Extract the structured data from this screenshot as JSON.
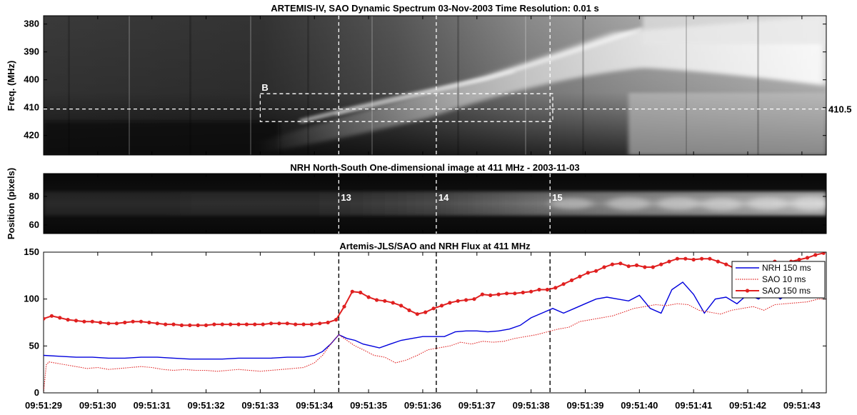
{
  "panels": {
    "spectrum": {
      "title": "ARTEMIS-IV, SAO Dynamic Spectrum 03-Nov-2003 Time Resolution: 0.01 s",
      "ylabel": "Freq. (MHz)",
      "yticks": [
        380,
        390,
        400,
        410,
        420
      ],
      "ylim": [
        377,
        427
      ],
      "box_label": "B",
      "line_label": "410.5",
      "line_freq": 410.5,
      "box": {
        "t0": 33.0,
        "t1": 38.4,
        "f0": 405,
        "f1": 415
      }
    },
    "nrh": {
      "title": "NRH North-South One-dimensional image at 411 MHz  -  2003-11-03",
      "ylabel": "Position (pixels)",
      "yticks": [
        60,
        80
      ],
      "ylim": [
        54,
        96
      ],
      "markers": [
        "13",
        "14",
        "15"
      ]
    },
    "flux": {
      "title": "Artemis-JLS/SAO and NRH Flux at 411 MHz",
      "yticks": [
        0,
        50,
        100,
        150
      ],
      "ylim": [
        0,
        150
      ]
    }
  },
  "time_axis": {
    "xlim": [
      29.0,
      43.45
    ],
    "ticks": [
      "09:51:29",
      "09:51:30",
      "09:51:31",
      "09:51:32",
      "09:51:33",
      "09:51:34",
      "09:51:35",
      "09:51:36",
      "09:51:37",
      "09:51:38",
      "09:51:39",
      "09:51:40",
      "09:51:41",
      "09:51:42",
      "09:51:43"
    ],
    "tick_values": [
      29,
      30,
      31,
      32,
      33,
      34,
      35,
      36,
      37,
      38,
      39,
      40,
      41,
      42,
      43
    ]
  },
  "markers_time": [
    34.45,
    36.25,
    38.35
  ],
  "colors": {
    "nrh": "#0000dd",
    "sao": "#e02020"
  },
  "chart_data": {
    "type": "line",
    "title": "Artemis-JLS/SAO and NRH Flux at 411 MHz",
    "xlabel": "",
    "ylabel": "",
    "ylim": [
      0,
      150
    ],
    "legend_position": "top-right",
    "series": [
      {
        "name": "NRH 150 ms",
        "style": "solid",
        "x": [
          29.0,
          29.3,
          29.6,
          29.9,
          30.2,
          30.5,
          30.8,
          31.1,
          31.4,
          31.7,
          32.0,
          32.3,
          32.6,
          32.9,
          33.2,
          33.5,
          33.8,
          34.0,
          34.15,
          34.3,
          34.45,
          34.6,
          34.75,
          34.9,
          35.05,
          35.2,
          35.4,
          35.6,
          35.8,
          36.0,
          36.2,
          36.4,
          36.6,
          36.8,
          37.0,
          37.2,
          37.4,
          37.6,
          37.8,
          38.0,
          38.2,
          38.4,
          38.6,
          38.8,
          39.0,
          39.2,
          39.4,
          39.6,
          39.8,
          40.0,
          40.2,
          40.4,
          40.6,
          40.8,
          41.0,
          41.2,
          41.4,
          41.6,
          41.8,
          42.0,
          42.2,
          42.4,
          42.6,
          42.8,
          43.0,
          43.2,
          43.35
        ],
        "values": [
          40,
          39,
          38,
          38,
          37,
          37,
          38,
          38,
          37,
          36,
          36,
          36,
          37,
          37,
          37,
          38,
          38,
          40,
          44,
          52,
          62,
          58,
          56,
          52,
          50,
          48,
          52,
          56,
          58,
          60,
          60,
          60,
          65,
          66,
          66,
          65,
          66,
          68,
          72,
          80,
          85,
          90,
          85,
          90,
          95,
          100,
          102,
          100,
          98,
          104,
          90,
          85,
          110,
          118,
          105,
          85,
          100,
          102,
          95,
          105,
          100,
          110,
          100,
          108,
          105,
          130,
          122
        ]
      },
      {
        "name": "SAO 10 ms",
        "style": "dotted",
        "x": [
          29.0,
          29.05,
          29.1,
          29.2,
          29.4,
          29.6,
          29.8,
          30.0,
          30.2,
          30.4,
          30.6,
          30.8,
          31.0,
          31.2,
          31.4,
          31.6,
          31.8,
          32.0,
          32.2,
          32.4,
          32.6,
          32.8,
          33.0,
          33.2,
          33.4,
          33.6,
          33.8,
          34.0,
          34.15,
          34.3,
          34.45,
          34.6,
          34.75,
          34.9,
          35.1,
          35.3,
          35.5,
          35.7,
          35.9,
          36.1,
          36.3,
          36.5,
          36.7,
          36.9,
          37.1,
          37.3,
          37.5,
          37.7,
          37.9,
          38.1,
          38.3,
          38.5,
          38.7,
          38.9,
          39.1,
          39.3,
          39.5,
          39.7,
          39.9,
          40.1,
          40.3,
          40.5,
          40.7,
          40.9,
          41.1,
          41.3,
          41.5,
          41.7,
          41.9,
          42.1,
          42.3,
          42.5,
          42.7,
          42.9,
          43.1,
          43.3,
          43.45
        ],
        "values": [
          0,
          30,
          33,
          32,
          30,
          28,
          26,
          27,
          25,
          26,
          27,
          28,
          27,
          25,
          24,
          25,
          24,
          24,
          23,
          24,
          25,
          24,
          23,
          24,
          25,
          26,
          27,
          32,
          40,
          52,
          62,
          56,
          50,
          46,
          40,
          38,
          32,
          35,
          40,
          46,
          48,
          50,
          54,
          52,
          55,
          54,
          55,
          58,
          60,
          62,
          65,
          68,
          70,
          76,
          78,
          80,
          82,
          86,
          90,
          92,
          94,
          93,
          95,
          94,
          88,
          86,
          84,
          88,
          90,
          92,
          88,
          94,
          95,
          96,
          97,
          100,
          100
        ]
      },
      {
        "name": "SAO 150 ms",
        "style": "solid-marker",
        "x": [
          29.0,
          29.15,
          29.3,
          29.45,
          29.6,
          29.75,
          29.9,
          30.05,
          30.2,
          30.35,
          30.5,
          30.65,
          30.8,
          30.95,
          31.1,
          31.25,
          31.4,
          31.55,
          31.7,
          31.85,
          32.0,
          32.15,
          32.3,
          32.45,
          32.6,
          32.75,
          32.9,
          33.05,
          33.2,
          33.35,
          33.5,
          33.65,
          33.8,
          33.95,
          34.1,
          34.25,
          34.4,
          34.55,
          34.7,
          34.85,
          35.0,
          35.15,
          35.3,
          35.45,
          35.6,
          35.75,
          35.9,
          36.05,
          36.2,
          36.35,
          36.5,
          36.65,
          36.8,
          36.95,
          37.1,
          37.25,
          37.4,
          37.55,
          37.7,
          37.85,
          38.0,
          38.15,
          38.3,
          38.45,
          38.6,
          38.75,
          38.9,
          39.05,
          39.2,
          39.35,
          39.5,
          39.65,
          39.8,
          39.95,
          40.1,
          40.25,
          40.4,
          40.55,
          40.7,
          40.85,
          41.0,
          41.15,
          41.3,
          41.45,
          41.6,
          41.75,
          41.9,
          42.05,
          42.2,
          42.35,
          42.5,
          42.65,
          42.8,
          42.95,
          43.1,
          43.25,
          43.4
        ],
        "values": [
          79,
          82,
          80,
          78,
          77,
          76,
          76,
          75,
          74,
          74,
          75,
          76,
          76,
          75,
          74,
          73,
          73,
          72,
          72,
          72,
          72,
          73,
          73,
          73,
          73,
          73,
          73,
          73,
          74,
          74,
          74,
          73,
          73,
          73,
          74,
          75,
          78,
          92,
          108,
          107,
          102,
          99,
          98,
          96,
          93,
          88,
          84,
          86,
          90,
          93,
          96,
          98,
          99,
          100,
          105,
          104,
          105,
          106,
          106,
          107,
          108,
          110,
          110,
          112,
          116,
          120,
          124,
          128,
          130,
          134,
          137,
          138,
          135,
          136,
          134,
          134,
          137,
          140,
          143,
          143,
          142,
          143,
          143,
          140,
          137,
          133,
          134,
          135,
          134,
          137,
          140,
          138,
          140,
          142,
          144,
          147,
          149
        ]
      }
    ]
  },
  "legend": [
    {
      "label": "NRH 150 ms",
      "style": "solid"
    },
    {
      "label": "SAO 10 ms",
      "style": "dotted"
    },
    {
      "label": "SAO 150 ms",
      "style": "solid-marker"
    }
  ]
}
